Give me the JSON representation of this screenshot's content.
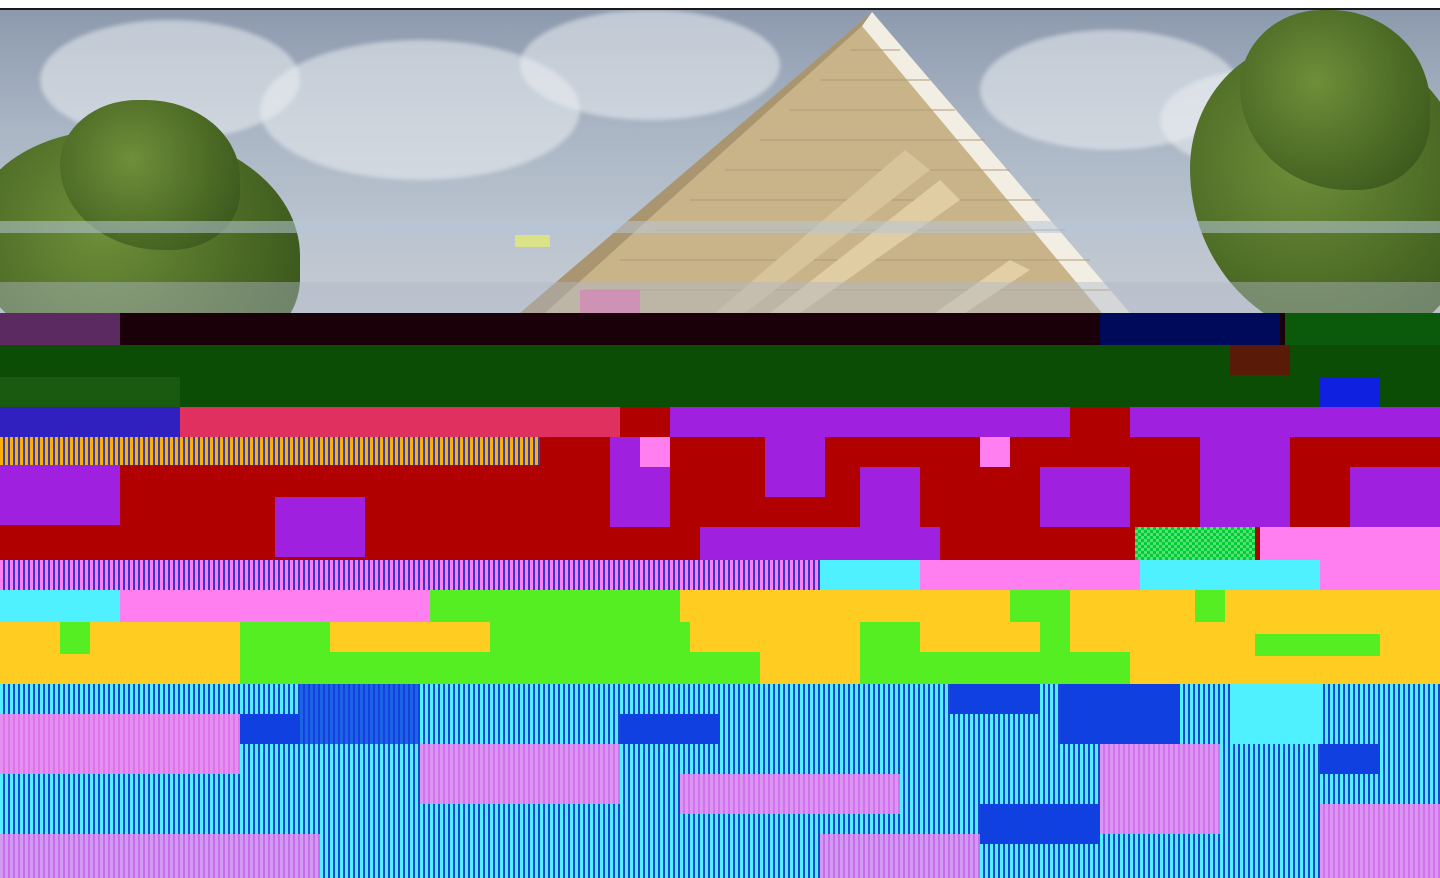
{
  "page": {
    "colors": {
      "sky_top": "#8d9aae",
      "sky_bottom": "#c6cbd2",
      "foliage": "#4d6b25",
      "roof_underside": "#c9b48a",
      "roof_edge": "#f2eee4",
      "glitch_dark_band": "#1a0008",
      "glitch_green": "#0b4d05",
      "glitch_red": "#b00000",
      "glitch_purple": "#a020e0",
      "glitch_cyan": "#4ff0ff",
      "glitch_pink": "#ff7ef0",
      "glitch_lime": "#55ee22",
      "glitch_yellow": "#ffcc22",
      "glitch_blue": "#1040e0"
    }
  }
}
